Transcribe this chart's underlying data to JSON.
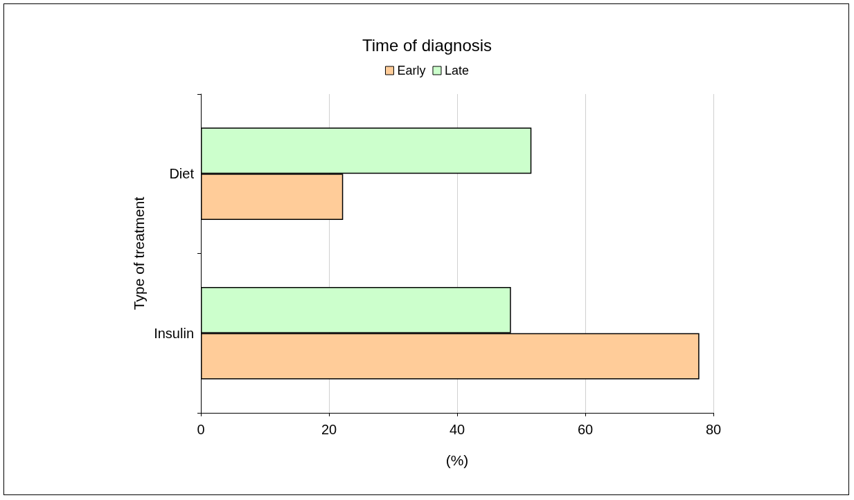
{
  "chart_data": {
    "type": "bar",
    "orientation": "horizontal",
    "legend_title": "Time of diagnosis",
    "xlabel": "(%)",
    "ylabel": "Type of treatment",
    "categories": [
      "Diet",
      "Insulin"
    ],
    "series": [
      {
        "name": "Early",
        "color": "#ffcc99",
        "values": [
          22.2,
          77.8
        ]
      },
      {
        "name": "Late",
        "color": "#ccffcc",
        "values": [
          51.6,
          48.4
        ]
      }
    ],
    "xlim": [
      0,
      80
    ],
    "xticks": [
      0,
      20,
      40,
      60,
      80
    ],
    "grid": "x",
    "legend": "top"
  }
}
